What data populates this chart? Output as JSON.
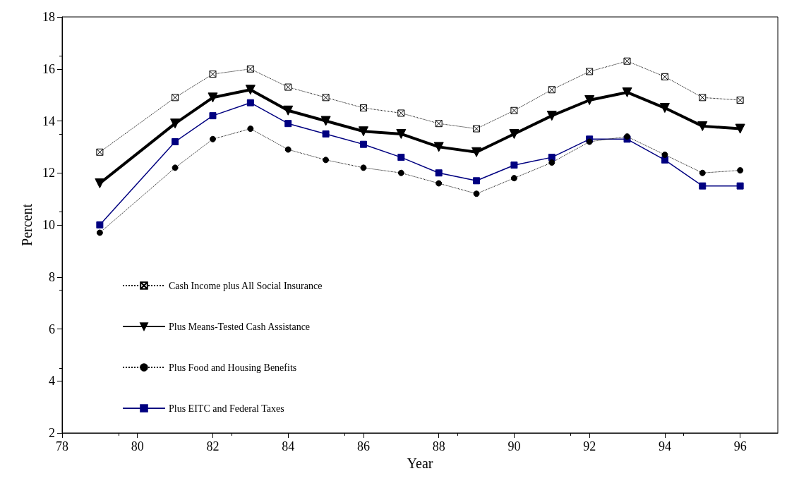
{
  "chart_data": {
    "type": "line",
    "xlabel": "Year",
    "ylabel": "Percent",
    "x": [
      79,
      81,
      82,
      83,
      84,
      85,
      86,
      87,
      88,
      89,
      90,
      91,
      92,
      93,
      94,
      95,
      96
    ],
    "xlim": [
      78,
      97
    ],
    "xticks": [
      78,
      80,
      82,
      84,
      86,
      88,
      90,
      92,
      94,
      96
    ],
    "ylim": [
      2,
      18
    ],
    "yticks": [
      2,
      4,
      6,
      8,
      10,
      12,
      14,
      16,
      18
    ],
    "grid": false,
    "legend": "bottom left",
    "series": [
      {
        "name": "Cash Income plus All Social Insurance",
        "color": "#000000",
        "marker": "cross",
        "line_style": "dotted",
        "values": [
          12.8,
          14.9,
          15.8,
          16.0,
          15.3,
          14.9,
          14.5,
          14.3,
          13.9,
          13.7,
          14.4,
          15.2,
          15.9,
          16.3,
          15.7,
          14.9,
          14.8
        ]
      },
      {
        "name": "Plus Means-Tested Cash Assistance",
        "color": "#000000",
        "marker": "triangle",
        "line_style": "solid",
        "values": [
          11.6,
          13.9,
          14.9,
          15.2,
          14.4,
          14.0,
          13.6,
          13.5,
          13.0,
          12.8,
          13.5,
          14.2,
          14.8,
          15.1,
          14.5,
          13.8,
          13.7
        ]
      },
      {
        "name": "Plus Food and Housing Benefits",
        "color": "#000000",
        "marker": "circle",
        "line_style": "dotted",
        "values": [
          9.7,
          12.2,
          13.3,
          13.7,
          12.9,
          12.5,
          12.2,
          12.0,
          11.6,
          11.2,
          11.8,
          12.4,
          13.2,
          13.4,
          12.7,
          12.0,
          12.1
        ]
      },
      {
        "name": "Plus EITC and Federal Taxes",
        "color": "#000080",
        "marker": "square",
        "line_style": "solid",
        "values": [
          10.0,
          13.2,
          14.2,
          14.7,
          13.9,
          13.5,
          13.1,
          12.6,
          12.0,
          11.7,
          12.3,
          12.6,
          13.3,
          13.3,
          12.5,
          11.5,
          11.5
        ]
      }
    ]
  }
}
